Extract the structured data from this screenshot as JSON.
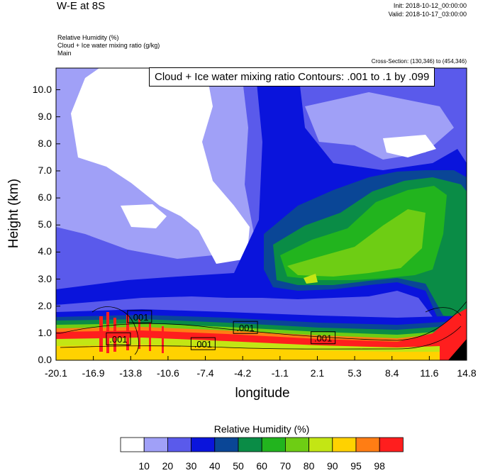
{
  "header": {
    "title": "W-E at 8S",
    "init": "Init: 2018-10-12_00:00:00",
    "valid": "Valid: 2018-10-17_03:00:00",
    "field1": "Relative Humidity   (%)",
    "field2": "Cloud + Ice water mixing ratio   (g/kg)",
    "field3": "Main",
    "cross_section": "Cross-Section: (130,346) to (454,346)",
    "contour_info": "Cloud + Ice water mixing ratio Contours: .001 to .1 by .099"
  },
  "colors": {
    "levels": [
      "#ffffff",
      "#a0a0f7",
      "#5a5aeb",
      "#0a14dc",
      "#0a4696",
      "#0a8c46",
      "#22b41e",
      "#6ecd14",
      "#c3e614",
      "#ffd200",
      "#ff7d14",
      "#ff1e1e"
    ]
  },
  "chart_data": {
    "type": "heatmap",
    "xlabel": "longitude",
    "ylabel": "Height (km)",
    "x_ticks": [
      "-20.1",
      "-16.9",
      "-13.8",
      "-10.6",
      "-7.4",
      "-4.2",
      "-1.1",
      "2.1",
      "5.3",
      "8.4",
      "11.6",
      "14.8"
    ],
    "y_ticks": [
      "0.0",
      "1.0",
      "2.0",
      "3.0",
      "4.0",
      "5.0",
      "6.0",
      "7.0",
      "8.0",
      "9.0",
      "10.0"
    ],
    "xlim": [
      -20.1,
      14.8
    ],
    "ylim": [
      0,
      10.8
    ],
    "contour_labels": [
      {
        "text": ".001",
        "lon": -14.8,
        "h": 0.78
      },
      {
        "text": ".001",
        "lon": -13.0,
        "h": 1.6
      },
      {
        "text": ".001",
        "lon": -7.6,
        "h": 0.6
      },
      {
        "text": ".001",
        "lon": -4.0,
        "h": 1.2
      },
      {
        "text": ".001",
        "lon": 2.6,
        "h": 0.82
      }
    ],
    "colorbar": {
      "title": "Relative Humidity  (%)",
      "ticks": [
        "10",
        "20",
        "30",
        "40",
        "50",
        "60",
        "70",
        "80",
        "90",
        "95",
        "98"
      ]
    }
  }
}
